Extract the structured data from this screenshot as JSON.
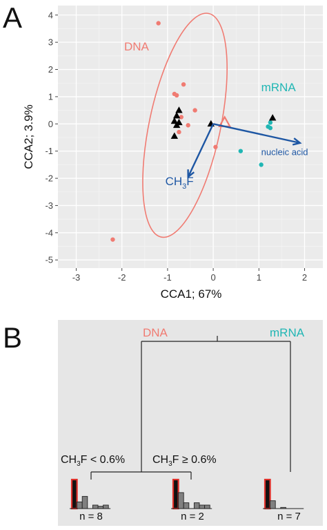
{
  "panels": {
    "a": {
      "letter": "A"
    },
    "b": {
      "letter": "B"
    }
  },
  "chart_data": [
    {
      "panel": "A",
      "type": "scatter",
      "xlabel": "CCA1; 67%",
      "ylabel": "CCA2; 3.9%",
      "xlim": [
        -3.4,
        2.4
      ],
      "ylim": [
        -5.3,
        4.35
      ],
      "xticks": [
        -3,
        -2,
        -1,
        0,
        1,
        2
      ],
      "yticks": [
        4,
        3,
        2,
        1,
        0,
        -1,
        -2,
        -3,
        -4,
        -5
      ],
      "grid": true,
      "background": "#ebebeb",
      "colors": {
        "dna": "#f07b72",
        "mrna": "#20b6b4",
        "arrow": "#1d56a3",
        "triangle": "#000000"
      },
      "group_labels": [
        {
          "text": "DNA",
          "x": -1.95,
          "y": 2.7,
          "color": "#f07b72"
        },
        {
          "text": "mRNA",
          "x": 1.05,
          "y": 1.2,
          "color": "#20b6b4"
        }
      ],
      "series": [
        {
          "group": "DNA",
          "marker": "circle",
          "color": "#f07b72",
          "points": [
            [
              -1.2,
              3.7
            ],
            [
              -0.65,
              1.45
            ],
            [
              -0.85,
              1.1
            ],
            [
              -0.8,
              1.05
            ],
            [
              -0.4,
              0.5
            ],
            [
              -0.7,
              0.25
            ],
            [
              -0.55,
              -0.05
            ],
            [
              -0.75,
              -0.3
            ],
            [
              0.05,
              -0.85
            ],
            [
              -2.2,
              -4.25
            ]
          ]
        },
        {
          "group": "mRNA",
          "marker": "circle",
          "color": "#20b6b4",
          "points": [
            [
              1.25,
              0.05
            ],
            [
              1.2,
              -0.1
            ],
            [
              1.25,
              -0.15
            ],
            [
              0.6,
              -1.0
            ],
            [
              1.05,
              -1.5
            ]
          ]
        },
        {
          "group": "triangles",
          "marker": "triangle",
          "color": "#000000",
          "points": [
            [
              -0.75,
              0.5
            ],
            [
              -0.8,
              0.3
            ],
            [
              -0.85,
              0.1
            ],
            [
              -0.75,
              0.05
            ],
            [
              -0.8,
              -0.05
            ],
            [
              -0.85,
              -0.45
            ],
            [
              -0.05,
              0.0
            ],
            [
              1.3,
              0.22
            ]
          ]
        },
        {
          "group": "centroid",
          "marker": "triangle",
          "color": "#f07b72",
          "points": [
            [
              0.25,
              0.05
            ]
          ]
        }
      ],
      "ellipse": {
        "cx": -0.62,
        "cy": -0.05,
        "rx": 0.78,
        "ry": 4.2,
        "rotation_deg": -12,
        "color": "#f07b72"
      },
      "arrows": [
        {
          "label": "nucleic acid",
          "from": [
            0,
            0
          ],
          "to": [
            1.9,
            -0.7
          ],
          "label_at": [
            1.05,
            -1.15
          ]
        },
        {
          "label": "CH",
          "sub": "3",
          "label_tail": "F",
          "from": [
            0,
            0
          ],
          "to": [
            -0.55,
            -1.95
          ],
          "label_at": [
            -1.05,
            -2.25
          ]
        }
      ]
    },
    {
      "panel": "B",
      "type": "tree",
      "background": "#e6e6e6",
      "split_labels": {
        "dna": "DNA",
        "mrna": "mRNA",
        "ch3f_low": "CH3F < 0.6%",
        "ch3f_high": "CH3F ≥ 0.6%"
      },
      "leaves": [
        {
          "label": "n = 8",
          "bars": [
            1.0,
            0.23,
            0.42,
            0.0,
            0.12,
            0.08,
            0.12
          ]
        },
        {
          "label": "n = 2",
          "bars": [
            1.0,
            0.55,
            0.2,
            0.0,
            0.2,
            0.12,
            0.12
          ]
        },
        {
          "label": "n = 7",
          "bars": [
            1.0,
            0.27,
            0.0,
            0.04,
            0.0,
            0.0,
            0.0
          ]
        }
      ]
    }
  ]
}
